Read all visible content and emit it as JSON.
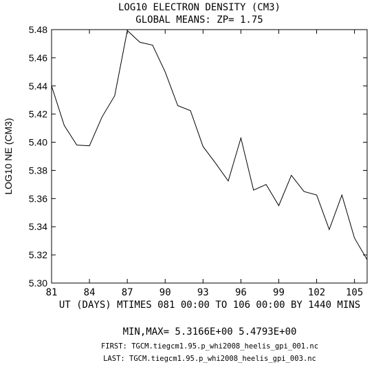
{
  "chart_data": {
    "type": "line",
    "title": "LOG10 ELECTRON DENSITY (CM3)",
    "subtitle": "GLOBAL MEANS: ZP=  1.75",
    "ylabel": "LOG10 NE (CM3)",
    "xlabel": "UT (DAYS) MTIMES 081 00:00 TO 106 00:00 BY 1440 MINS",
    "xlim": [
      81,
      106
    ],
    "ylim": [
      5.3,
      5.48
    ],
    "x_ticks": [
      81,
      84,
      87,
      90,
      93,
      96,
      99,
      102,
      105
    ],
    "x_tick_labels": [
      "81",
      "84",
      "87",
      "90",
      "93",
      "96",
      "99",
      "102",
      "105"
    ],
    "y_ticks": [
      5.3,
      5.32,
      5.34,
      5.36,
      5.38,
      5.4,
      5.42,
      5.44,
      5.46,
      5.48
    ],
    "y_tick_labels": [
      "5.30",
      "5.32",
      "5.34",
      "5.36",
      "5.38",
      "5.40",
      "5.42",
      "5.44",
      "5.46",
      "5.48"
    ],
    "x": [
      81,
      82,
      83,
      84,
      85,
      86,
      87,
      88,
      89,
      90,
      91,
      92,
      93,
      94,
      95,
      96,
      97,
      98,
      99,
      100,
      101,
      102,
      103,
      104,
      105,
      106
    ],
    "y": [
      5.44,
      5.412,
      5.398,
      5.3975,
      5.418,
      5.433,
      5.4793,
      5.471,
      5.469,
      5.45,
      5.426,
      5.4225,
      5.397,
      5.385,
      5.3725,
      5.403,
      5.366,
      5.37,
      5.355,
      5.3765,
      5.365,
      5.3625,
      5.338,
      5.3625,
      5.332,
      5.3166
    ],
    "grid": false,
    "legend": "none"
  },
  "footer": {
    "minmax": "MIN,MAX=  5.3166E+00  5.4793E+00",
    "first": "FIRST: TGCM.tiegcm1.95.p_whi2008_heelis_gpi_001.nc",
    "last": "LAST:  TGCM.tiegcm1.95.p_whi2008_heelis_gpi_003.nc"
  }
}
